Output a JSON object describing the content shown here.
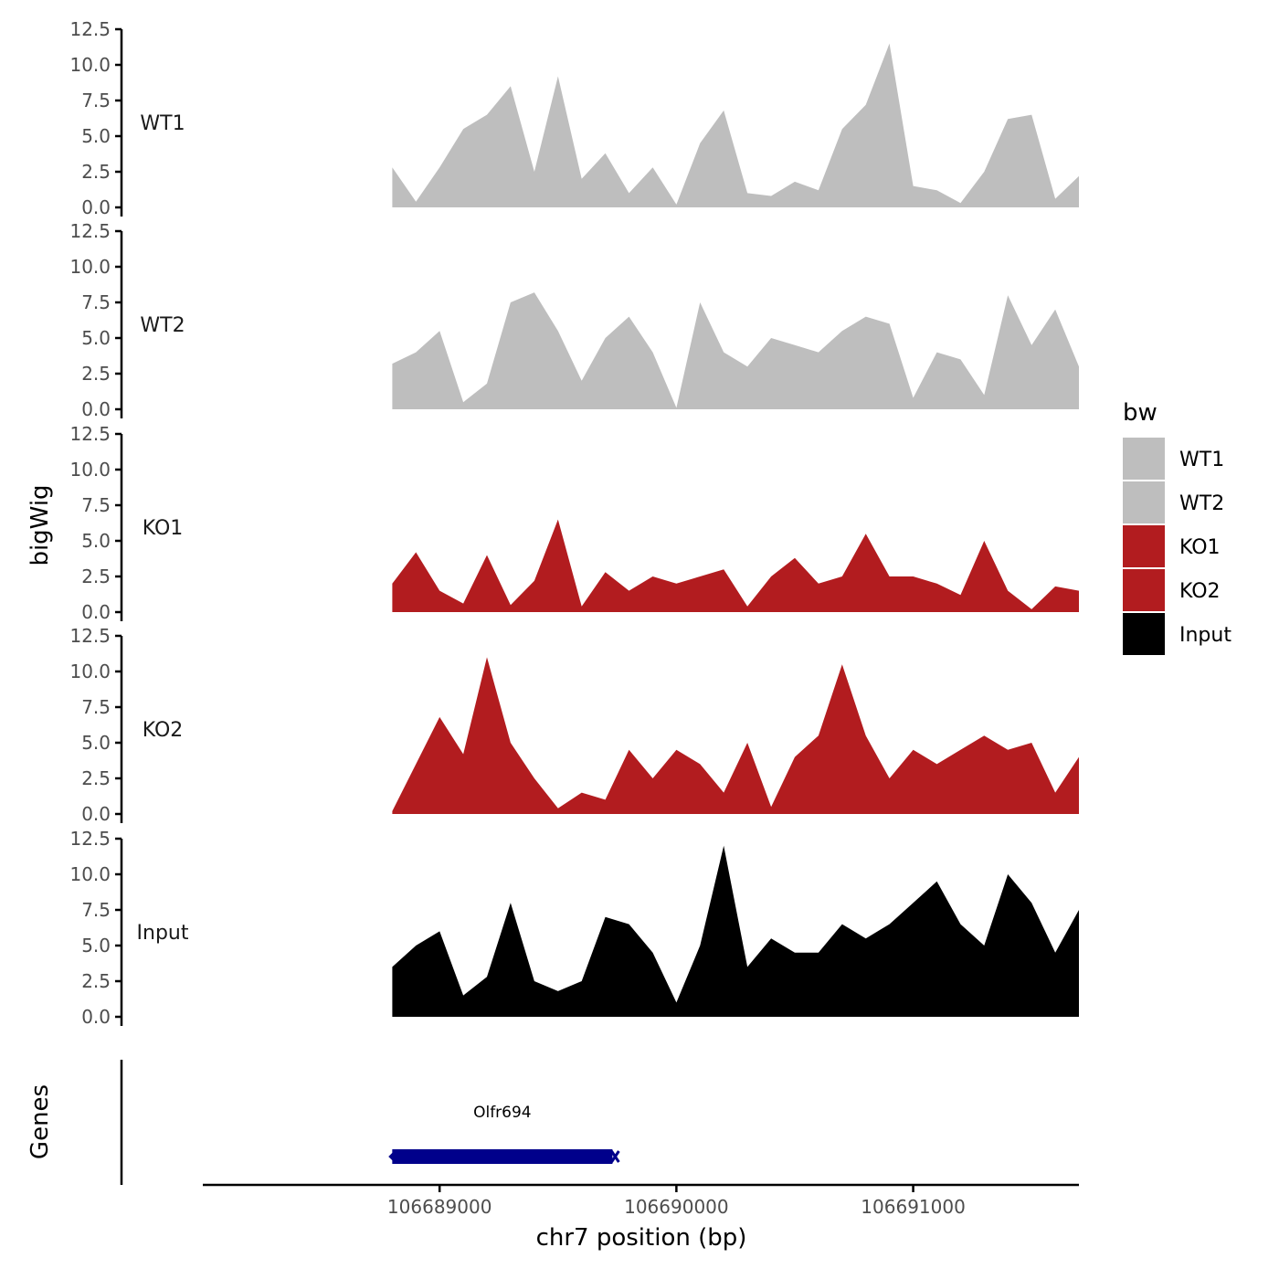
{
  "chart_data": {
    "type": "area",
    "ylabel": "bigWig",
    "xlabel": "chr7 position (bp)",
    "ylim": [
      0,
      12.5
    ],
    "yticks": [
      "0.0",
      "2.5",
      "5.0",
      "7.5",
      "10.0",
      "12.5"
    ],
    "xlim": [
      106688000,
      106691700
    ],
    "xticks": [
      106689000,
      106690000,
      106691000
    ],
    "xtick_labels": [
      "106689000",
      "106690000",
      "106691000"
    ],
    "grid": false,
    "legend": {
      "title": "bw",
      "position": "right",
      "entries": [
        {
          "name": "WT1",
          "color": "#bebebe"
        },
        {
          "name": "WT2",
          "color": "#bebebe"
        },
        {
          "name": "KO1",
          "color": "#b21c1f"
        },
        {
          "name": "KO2",
          "color": "#b21c1f"
        },
        {
          "name": "Input",
          "color": "#000000"
        }
      ]
    },
    "x_positions": [
      106688800,
      106688900,
      106689000,
      106689100,
      106689200,
      106689300,
      106689400,
      106689500,
      106689600,
      106689700,
      106689800,
      106689900,
      106690000,
      106690100,
      106690200,
      106690300,
      106690400,
      106690500,
      106690600,
      106690700,
      106690800,
      106690900,
      106691000,
      106691100,
      106691200,
      106691300,
      106691400,
      106691500,
      106691600,
      106691700
    ],
    "series": [
      {
        "name": "WT1",
        "color": "#bebebe",
        "values": [
          2.8,
          0.4,
          2.8,
          5.5,
          6.5,
          8.5,
          2.5,
          9.2,
          2.0,
          3.8,
          1.0,
          2.8,
          0.2,
          4.5,
          6.8,
          1.0,
          0.8,
          1.8,
          1.2,
          5.5,
          7.2,
          11.5,
          1.5,
          1.2,
          0.3,
          2.5,
          6.2,
          6.5,
          0.6,
          2.2
        ]
      },
      {
        "name": "WT2",
        "color": "#bebebe",
        "values": [
          3.2,
          4.0,
          5.5,
          0.5,
          1.8,
          7.5,
          8.2,
          5.5,
          2.0,
          5.0,
          6.5,
          4.0,
          0.1,
          7.5,
          4.0,
          3.0,
          5.0,
          4.5,
          4.0,
          5.5,
          6.5,
          6.0,
          0.8,
          4.0,
          3.5,
          1.0,
          8.0,
          4.5,
          7.0,
          3.0
        ]
      },
      {
        "name": "KO1",
        "color": "#b21c1f",
        "values": [
          2.0,
          4.2,
          1.5,
          0.6,
          4.0,
          0.5,
          2.2,
          6.5,
          0.4,
          2.8,
          1.5,
          2.5,
          2.0,
          2.5,
          3.0,
          0.4,
          2.5,
          3.8,
          2.0,
          2.5,
          5.5,
          2.5,
          2.5,
          2.0,
          1.2,
          5.0,
          1.5,
          0.2,
          1.8,
          1.5
        ]
      },
      {
        "name": "KO2",
        "color": "#b21c1f",
        "values": [
          0.2,
          3.5,
          6.8,
          4.2,
          11.0,
          5.0,
          2.5,
          0.4,
          1.5,
          1.0,
          4.5,
          2.5,
          4.5,
          3.5,
          1.5,
          5.0,
          0.5,
          4.0,
          5.5,
          10.5,
          5.5,
          2.5,
          4.5,
          3.5,
          4.5,
          5.5,
          4.5,
          5.0,
          1.5,
          4.0
        ]
      },
      {
        "name": "Input",
        "color": "#000000",
        "values": [
          3.5,
          5.0,
          6.0,
          1.5,
          2.8,
          8.0,
          2.5,
          1.8,
          2.5,
          7.0,
          6.5,
          4.5,
          1.0,
          5.0,
          12.0,
          3.5,
          5.5,
          4.5,
          4.5,
          6.5,
          5.5,
          6.5,
          8.0,
          9.5,
          6.5,
          5.0,
          10.0,
          8.0,
          4.5,
          7.5
        ]
      }
    ],
    "genes_panel": {
      "ylabel": "Genes",
      "genes": [
        {
          "name": "Olfr694",
          "start": 106688800,
          "end": 106689730,
          "color": "#00008b"
        }
      ]
    }
  }
}
